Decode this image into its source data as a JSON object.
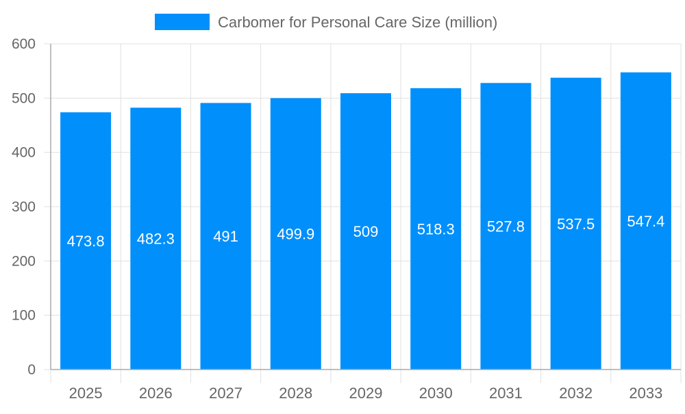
{
  "chart_data": {
    "type": "bar",
    "categories": [
      "2025",
      "2026",
      "2027",
      "2028",
      "2029",
      "2030",
      "2031",
      "2032",
      "2033"
    ],
    "series": [
      {
        "name": "Carbomer for Personal Care Size (million)",
        "values": [
          473.8,
          482.3,
          491,
          499.9,
          509,
          518.3,
          527.8,
          537.5,
          547.4
        ]
      }
    ],
    "ylim": [
      0,
      600
    ],
    "yticks": [
      0,
      100,
      200,
      300,
      400,
      500,
      600
    ],
    "grid": true,
    "legend": "top",
    "data_labels": true,
    "colors": {
      "bar": "#008ffb",
      "grid": "#e0e0e0",
      "axis": "#aaaaaa",
      "text": "#666666",
      "label": "#ffffff"
    }
  }
}
